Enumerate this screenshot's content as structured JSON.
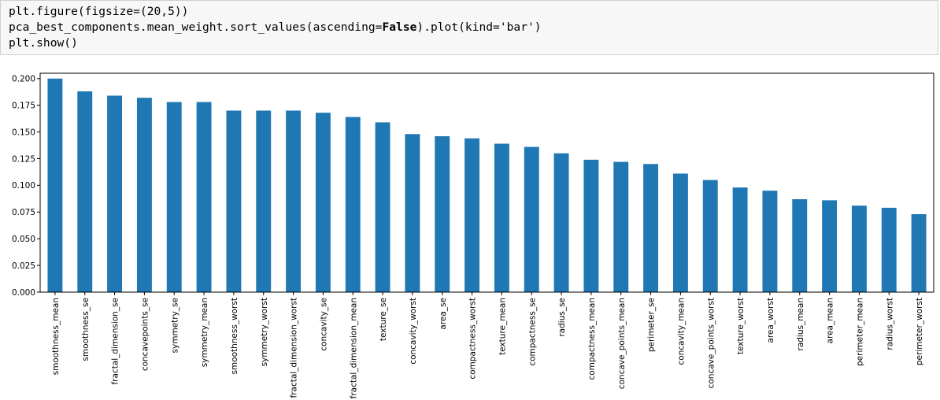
{
  "code_cell": {
    "lines": [
      {
        "parts": [
          {
            "text": "plt.figure(figsize=(20,5))",
            "bold": false
          }
        ]
      },
      {
        "parts": [
          {
            "text": "pca_best_components.mean_weight.sort_values(ascending=",
            "bold": false
          },
          {
            "text": "False",
            "bold": true
          },
          {
            "text": ").plot(kind='bar')",
            "bold": false
          }
        ]
      },
      {
        "parts": [
          {
            "text": "plt.show()",
            "bold": false
          }
        ]
      }
    ]
  },
  "chart_data": {
    "type": "bar",
    "title": "",
    "xlabel": "",
    "ylabel": "",
    "ylim": [
      0,
      0.205
    ],
    "yticks": [
      "0.000",
      "0.025",
      "0.050",
      "0.075",
      "0.100",
      "0.125",
      "0.150",
      "0.175",
      "0.200"
    ],
    "bar_color": "#1f77b4",
    "grid": false,
    "categories": [
      "smoothness_mean",
      "smoothness_se",
      "fractal_dimension_se",
      "concavepoints_se",
      "symmetry_se",
      "symmetry_mean",
      "smoothness_worst",
      "symmetry_worst",
      "fractal_dimension_worst",
      "concavity_se",
      "fractal_dimension_mean",
      "texture_se",
      "concavity_worst",
      "area_se",
      "compactness_worst",
      "texture_mean",
      "compactness_se",
      "radius_se",
      "compactness_mean",
      "concave_points_mean",
      "perimeter_se",
      "concavity_mean",
      "concave_points_worst",
      "texture_worst",
      "area_worst",
      "radius_mean",
      "area_mean",
      "perimeter_mean",
      "radius_worst",
      "perimeter_worst"
    ],
    "values": [
      0.2,
      0.188,
      0.184,
      0.182,
      0.178,
      0.178,
      0.17,
      0.17,
      0.17,
      0.168,
      0.164,
      0.159,
      0.148,
      0.146,
      0.144,
      0.139,
      0.136,
      0.13,
      0.124,
      0.122,
      0.12,
      0.111,
      0.105,
      0.098,
      0.095,
      0.087,
      0.086,
      0.081,
      0.079,
      0.073
    ]
  }
}
